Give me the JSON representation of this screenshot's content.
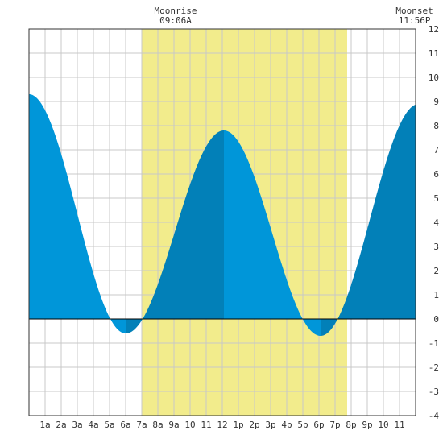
{
  "chart_data": {
    "type": "area",
    "title": "",
    "xlabel": "",
    "ylabel": "",
    "x_range_hours": [
      0,
      24
    ],
    "ylim": [
      -4,
      12
    ],
    "grid": true,
    "x_tick_labels": [
      "1a",
      "2a",
      "3a",
      "4a",
      "5a",
      "6a",
      "7a",
      "8a",
      "9a",
      "10",
      "11",
      "12",
      "1p",
      "2p",
      "3p",
      "4p",
      "5p",
      "6p",
      "7p",
      "8p",
      "9p",
      "10",
      "11"
    ],
    "y_tick_labels": [
      "12",
      "11",
      "10",
      "9",
      "8",
      "7",
      "6",
      "5",
      "4",
      "3",
      "2",
      "1",
      "0",
      "-1",
      "-2",
      "-3",
      "-4"
    ],
    "daylight_band_hours": [
      7.0,
      19.75
    ],
    "tide_extremes": [
      {
        "hour": 0.0,
        "height": 9.3
      },
      {
        "hour": 6.0,
        "height": -0.6
      },
      {
        "hour": 12.1,
        "height": 7.8
      },
      {
        "hour": 18.1,
        "height": -0.7
      },
      {
        "hour": 24.2,
        "height": 8.9
      }
    ],
    "annotations": [
      {
        "title": "Moonrise",
        "time": "09:06A",
        "hour": 9.1
      },
      {
        "title": "Moonset",
        "time": "11:56P",
        "hour": 23.93
      }
    ],
    "colors": {
      "daylight": "#f2ec8c",
      "falling": "#0096d9",
      "rising": "#0280b8",
      "grid": "#c8c8c8",
      "border": "#333333",
      "baseline": "#000000"
    }
  }
}
